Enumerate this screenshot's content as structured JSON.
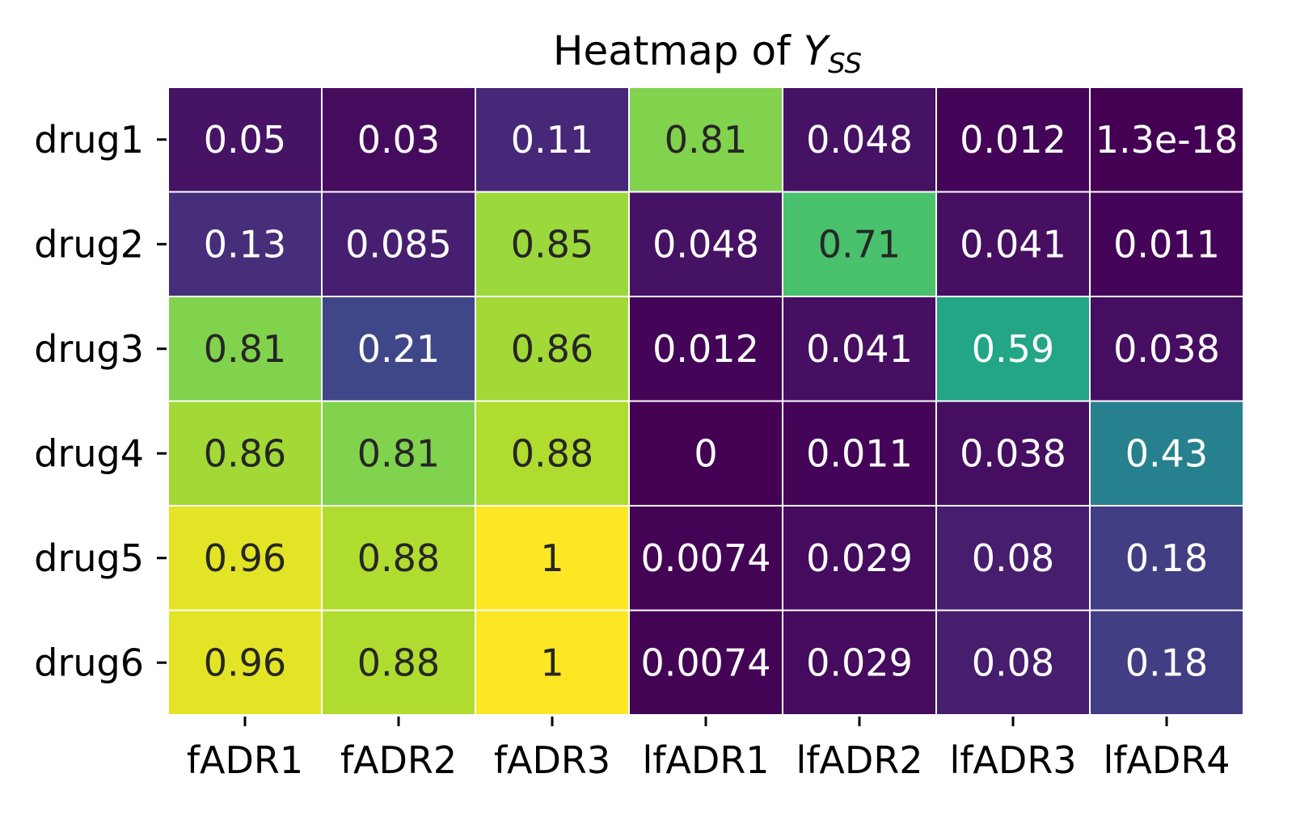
{
  "chart_data": {
    "type": "heatmap",
    "title_main": "Heatmap of ",
    "title_var": "Y",
    "title_sub": "SS",
    "xlabel": "",
    "ylabel": "",
    "columns": [
      "fADR1",
      "fADR2",
      "fADR3",
      "lfADR1",
      "lfADR2",
      "lfADR3",
      "lfADR4"
    ],
    "rows": [
      "drug1",
      "drug2",
      "drug3",
      "drug4",
      "drug5",
      "drug6"
    ],
    "values": [
      [
        0.05,
        0.03,
        0.11,
        0.81,
        0.048,
        0.012,
        1.3e-18
      ],
      [
        0.13,
        0.085,
        0.85,
        0.048,
        0.71,
        0.041,
        0.011
      ],
      [
        0.81,
        0.21,
        0.86,
        0.012,
        0.041,
        0.59,
        0.038
      ],
      [
        0.86,
        0.81,
        0.88,
        0,
        0.011,
        0.038,
        0.43
      ],
      [
        0.96,
        0.88,
        1,
        0.0074,
        0.029,
        0.08,
        0.18
      ],
      [
        0.96,
        0.88,
        1,
        0.0074,
        0.029,
        0.08,
        0.18
      ]
    ],
    "annotations": [
      [
        "0.05",
        "0.03",
        "0.11",
        "0.81",
        "0.048",
        "0.012",
        "1.3e-18"
      ],
      [
        "0.13",
        "0.085",
        "0.85",
        "0.048",
        "0.71",
        "0.041",
        "0.011"
      ],
      [
        "0.81",
        "0.21",
        "0.86",
        "0.012",
        "0.041",
        "0.59",
        "0.038"
      ],
      [
        "0.86",
        "0.81",
        "0.88",
        "0",
        "0.011",
        "0.038",
        "0.43"
      ],
      [
        "0.96",
        "0.88",
        "1",
        "0.0074",
        "0.029",
        "0.08",
        "0.18"
      ],
      [
        "0.96",
        "0.88",
        "1",
        "0.0074",
        "0.029",
        "0.08",
        "0.18"
      ]
    ],
    "colormap": "viridis",
    "vmin": 0,
    "vmax": 1,
    "grid": false,
    "legend": "none",
    "colors": {
      "cell_border": "#ffffff",
      "text_dark": "#262626",
      "text_light": "#ffffff"
    }
  }
}
